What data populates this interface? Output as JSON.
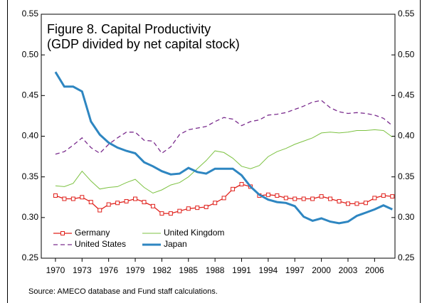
{
  "chart_data": {
    "type": "line",
    "title": "Figure 8. Capital Productivity",
    "subtitle": "(GDP divided by net capital stock)",
    "note": "Source: AMECO database and Fund staff calculations.",
    "x": [
      1970,
      1971,
      1972,
      1973,
      1974,
      1975,
      1976,
      1977,
      1978,
      1979,
      1980,
      1981,
      1982,
      1983,
      1984,
      1985,
      1986,
      1987,
      1988,
      1989,
      1990,
      1991,
      1992,
      1993,
      1994,
      1995,
      1996,
      1997,
      1998,
      1999,
      2000,
      2001,
      2002,
      2003,
      2004,
      2005,
      2006,
      2007,
      2008
    ],
    "xlim": [
      1968.4,
      2008.3
    ],
    "xticks": [
      1970,
      1973,
      1976,
      1979,
      1982,
      1985,
      1988,
      1991,
      1994,
      1997,
      2000,
      2003,
      2006
    ],
    "ylim": [
      0.25,
      0.55
    ],
    "yticks": [
      0.25,
      {
        "value": 0.3,
        "label": "0.30"
      },
      0.35,
      {
        "value": 0.4,
        "label": "0.40"
      },
      0.45,
      {
        "value": 0.5,
        "label": "0.50"
      },
      0.55
    ],
    "y2lim": [
      0.25,
      0.55
    ],
    "y2ticks": [
      0.25,
      {
        "value": 0.3,
        "label": "0.30"
      },
      0.35,
      {
        "value": 0.4,
        "label": "0.40"
      },
      0.45,
      {
        "value": 0.5,
        "label": "0.50"
      },
      0.55
    ],
    "series": [
      {
        "name": "Germany",
        "color": "#e0201b",
        "values": [
          0.327,
          0.323,
          0.323,
          0.325,
          0.319,
          0.309,
          0.316,
          0.318,
          0.32,
          0.323,
          0.319,
          0.314,
          0.305,
          0.305,
          0.308,
          0.311,
          0.312,
          0.313,
          0.318,
          0.324,
          0.335,
          0.341,
          0.338,
          0.327,
          0.328,
          0.327,
          0.324,
          0.323,
          0.323,
          0.323,
          0.326,
          0.323,
          0.32,
          0.317,
          0.317,
          0.318,
          0.324,
          0.327,
          0.326
        ]
      },
      {
        "name": "United Kingdom",
        "color": "#7dc242",
        "values": [
          0.339,
          0.338,
          0.342,
          0.357,
          0.345,
          0.335,
          0.337,
          0.338,
          0.343,
          0.347,
          0.337,
          0.33,
          0.334,
          0.34,
          0.343,
          0.35,
          0.36,
          0.37,
          0.382,
          0.38,
          0.373,
          0.363,
          0.36,
          0.364,
          0.375,
          0.381,
          0.385,
          0.39,
          0.394,
          0.398,
          0.404,
          0.405,
          0.404,
          0.405,
          0.407,
          0.407,
          0.408,
          0.407,
          0.399
        ]
      },
      {
        "name": "United States",
        "color": "#7b2d8e",
        "values": [
          0.378,
          0.381,
          0.389,
          0.398,
          0.386,
          0.379,
          0.39,
          0.398,
          0.405,
          0.405,
          0.395,
          0.394,
          0.379,
          0.387,
          0.402,
          0.408,
          0.41,
          0.412,
          0.418,
          0.423,
          0.421,
          0.413,
          0.418,
          0.42,
          0.426,
          0.427,
          0.429,
          0.433,
          0.437,
          0.442,
          0.444,
          0.435,
          0.43,
          0.428,
          0.429,
          0.428,
          0.426,
          0.422,
          0.413
        ]
      },
      {
        "name": "Japan",
        "color": "#2e86c1",
        "values": [
          0.479,
          0.461,
          0.461,
          0.455,
          0.418,
          0.402,
          0.392,
          0.386,
          0.382,
          0.379,
          0.368,
          0.363,
          0.357,
          0.353,
          0.354,
          0.361,
          0.356,
          0.354,
          0.36,
          0.36,
          0.36,
          0.352,
          0.338,
          0.328,
          0.322,
          0.319,
          0.318,
          0.314,
          0.301,
          0.296,
          0.299,
          0.295,
          0.293,
          0.295,
          0.302,
          0.306,
          0.31,
          0.315,
          0.31
        ]
      }
    ]
  }
}
